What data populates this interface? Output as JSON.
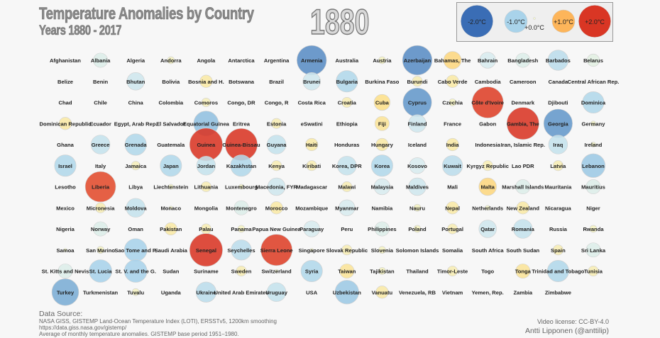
{
  "header": {
    "title": "Temperature Anomalies by Country",
    "subtitle": "Years 1880 - 2017",
    "year": "1880"
  },
  "legend": {
    "items": [
      {
        "label": "-2.0°C",
        "value": -2.0
      },
      {
        "label": "-1.0°C",
        "value": -1.0
      },
      {
        "label": "+0.0°C",
        "value": 0.0
      },
      {
        "label": "+1.0°C",
        "value": 1.0
      },
      {
        "label": "+2.0°C",
        "value": 2.0
      }
    ]
  },
  "footer": {
    "source_heading": "Data Source:",
    "source_line1": "NASA GISS, GISTEMP Land-Ocean Temperature Index (LOTI), ERSSTv5, 1200km smoothing",
    "source_line2": "https://data.giss.nasa.gov/gistemp/",
    "source_line3": "Average of monthly temperature anomalies. GISTEMP base period 1951–1980.",
    "license": "Video license: CC-BY-4.0",
    "author": "Antti Lipponen (@anttilip)"
  },
  "colors": {
    "stops": [
      [
        -2,
        "#3a6db5"
      ],
      [
        -1.5,
        "#6fa3d0"
      ],
      [
        -1,
        "#a9d3ea"
      ],
      [
        -0.5,
        "#d8ecef"
      ],
      [
        0,
        "#f3f6d0"
      ],
      [
        0.5,
        "#fde08a"
      ],
      [
        1,
        "#fdb55a"
      ],
      [
        1.5,
        "#f06a38"
      ],
      [
        2,
        "#d93624"
      ]
    ]
  },
  "chart_data": {
    "type": "scatter",
    "encoding": "bubble grid; size and color = temperature anomaly (°C); no bubble = no data",
    "year": 1880,
    "countries": [
      [
        "Afghanistan",
        null
      ],
      [
        "Albania",
        -0.4
      ],
      [
        "Algeria",
        null
      ],
      [
        "Andorra",
        0.1
      ],
      [
        "Angola",
        null
      ],
      [
        "Antarctica",
        null
      ],
      [
        "Argentina",
        null
      ],
      [
        "Armenia",
        -1.7
      ],
      [
        "Australia",
        null
      ],
      [
        "Austria",
        0.1
      ],
      [
        "Azerbaijan",
        -1.7
      ],
      [
        "Bahamas, The",
        0.6
      ],
      [
        "Bahrain",
        -0.5
      ],
      [
        "Bangladesh",
        -0.4
      ],
      [
        "Barbados",
        -0.8
      ],
      [
        "Belarus",
        -0.3
      ],
      [
        "Belize",
        null
      ],
      [
        "Benin",
        null
      ],
      [
        "Bhutan",
        -0.6
      ],
      [
        "Bolivia",
        null
      ],
      [
        "Bosnia and H.",
        0.3
      ],
      [
        "Botswana",
        null
      ],
      [
        "Brazil",
        null
      ],
      [
        "Brunei",
        -0.6
      ],
      [
        "Bulgaria",
        -0.9
      ],
      [
        "Burkina Faso",
        null
      ],
      [
        "Burundi",
        0.2
      ],
      [
        "Cabo Verde",
        0.3
      ],
      [
        "Cambodia",
        null
      ],
      [
        "Cameroon",
        null
      ],
      [
        "Canada",
        null
      ],
      [
        "Central African Rep.",
        null
      ],
      [
        "Chad",
        null
      ],
      [
        "Chile",
        null
      ],
      [
        "China",
        null
      ],
      [
        "Colombia",
        null
      ],
      [
        "Comoros",
        0.15
      ],
      [
        "Congo, DR",
        null
      ],
      [
        "Congo, R",
        null
      ],
      [
        "Costa Rica",
        null
      ],
      [
        "Croatia",
        0.2
      ],
      [
        "Cuba",
        0.5
      ],
      [
        "Cyprus",
        -1.6
      ],
      [
        "Czechia",
        0.1
      ],
      [
        "Côte d'Ivoire",
        1.9
      ],
      [
        "Denmark",
        null
      ],
      [
        "Djibouti",
        null
      ],
      [
        "Dominica",
        -0.9
      ],
      [
        "Dominican Republic",
        0.3
      ],
      [
        "Ecuador",
        null
      ],
      [
        "Egypt, Arab Rep.",
        null
      ],
      [
        "El Salvador",
        null
      ],
      [
        "Equatorial Guinea",
        -1.2
      ],
      [
        "Eritrea",
        null
      ],
      [
        "Estonia",
        0.2
      ],
      [
        "eSwatini",
        null
      ],
      [
        "Ethiopia",
        null
      ],
      [
        "Fiji",
        0.4
      ],
      [
        "Finland",
        -0.6
      ],
      [
        "France",
        null
      ],
      [
        "Gabon",
        null
      ],
      [
        "Gambia, The",
        2.0
      ],
      [
        "Georgia",
        -1.6
      ],
      [
        "Germany",
        0.05
      ],
      [
        "Ghana",
        null
      ],
      [
        "Greece",
        -0.7
      ],
      [
        "Grenada",
        -0.9
      ],
      [
        "Guatemala",
        null
      ],
      [
        "Guinea",
        2.1
      ],
      [
        "Guinea-Bissau",
        2.0
      ],
      [
        "Guyana",
        -0.7
      ],
      [
        "Haiti",
        0.3
      ],
      [
        "Honduras",
        null
      ],
      [
        "Hungary",
        0.3
      ],
      [
        "Iceland",
        null
      ],
      [
        "India",
        0.3
      ],
      [
        "Indonesia",
        null
      ],
      [
        "Iran, Islamic Rep.",
        null
      ],
      [
        "Iraq",
        -0.7
      ],
      [
        "Ireland",
        0.05
      ],
      [
        "Israel",
        -0.9
      ],
      [
        "Italy",
        null
      ],
      [
        "Jamaica",
        0.15
      ],
      [
        "Japan",
        -0.9
      ],
      [
        "Jordan",
        -0.7
      ],
      [
        "Kazakhstan",
        -0.9
      ],
      [
        "Kenya",
        0.2
      ],
      [
        "Kiribati",
        0.2
      ],
      [
        "Korea, DPR",
        -0.7
      ],
      [
        "Korea",
        -0.9
      ],
      [
        "Kosovo",
        -0.5
      ],
      [
        "Kuwait",
        -0.8
      ],
      [
        "Kyrgyz Republic",
        0.2
      ],
      [
        "Lao PDR",
        null
      ],
      [
        "Latvia",
        0.2
      ],
      [
        "Lebanon",
        -1.1
      ],
      [
        "Lesotho",
        null
      ],
      [
        "Liberia",
        1.8
      ],
      [
        "Libya",
        null
      ],
      [
        "Liechtenstein",
        0.05
      ],
      [
        "Lithuania",
        0.2
      ],
      [
        "Luxembourg",
        0.05
      ],
      [
        "Macedonia, FYR",
        -0.6
      ],
      [
        "Madagascar",
        null
      ],
      [
        "Malawi",
        0.2
      ],
      [
        "Malaysia",
        -0.5
      ],
      [
        "Maldives",
        -0.6
      ],
      [
        "Mali",
        null
      ],
      [
        "Malta",
        0.6
      ],
      [
        "Marshall Islands",
        -0.4
      ],
      [
        "Mauritania",
        null
      ],
      [
        "Mauritius",
        -0.4
      ],
      [
        "Mexico",
        null
      ],
      [
        "Micronesia",
        0.2
      ],
      [
        "Moldova",
        -0.7
      ],
      [
        "Monaco",
        0.02
      ],
      [
        "Mongolia",
        null
      ],
      [
        "Montenegro",
        -0.4
      ],
      [
        "Morocco",
        0.3
      ],
      [
        "Mozambique",
        null
      ],
      [
        "Myanmar",
        -0.5
      ],
      [
        "Namibia",
        null
      ],
      [
        "Nauru",
        0.1
      ],
      [
        "Nepal",
        0.3
      ],
      [
        "Netherlands",
        0.05
      ],
      [
        "New Zealand",
        0.3
      ],
      [
        "Nicaragua",
        null
      ],
      [
        "Niger",
        null
      ],
      [
        "Nigeria",
        null
      ],
      [
        "Norway",
        -0.4
      ],
      [
        "Oman",
        null
      ],
      [
        "Pakistan",
        0.3
      ],
      [
        "Palau",
        0.2
      ],
      [
        "Panama",
        0.1
      ],
      [
        "Papua New Guinea",
        null
      ],
      [
        "Paraguay",
        -0.5
      ],
      [
        "Peru",
        null
      ],
      [
        "Philippines",
        -0.4
      ],
      [
        "Poland",
        0.1
      ],
      [
        "Portugal",
        0.2
      ],
      [
        "Qatar",
        -0.6
      ],
      [
        "Romania",
        -0.7
      ],
      [
        "Russia",
        null
      ],
      [
        "Rwanda",
        0.1
      ],
      [
        "Samoa",
        0.02
      ],
      [
        "San Marino",
        0.1
      ],
      [
        "Sao Tome and P.",
        -1.0
      ],
      [
        "Saudi Arabia",
        null
      ],
      [
        "Senegal",
        2.1
      ],
      [
        "Seychelles",
        -0.8
      ],
      [
        "Sierra Leone",
        1.9
      ],
      [
        "Singapore",
        0.02
      ],
      [
        "Slovak Republic",
        0.2
      ],
      [
        "Slovenia",
        0.1
      ],
      [
        "Solomon Islands",
        null
      ],
      [
        "Somalia",
        null
      ],
      [
        "South Africa",
        null
      ],
      [
        "South Sudan",
        null
      ],
      [
        "Spain",
        0.2
      ],
      [
        "Sri Lanka",
        -0.4
      ],
      [
        "St. Kitts and Nevis",
        -0.4
      ],
      [
        "St. Lucia",
        -1.0
      ],
      [
        "St. V. and the G.",
        -1.0
      ],
      [
        "Sudan",
        null
      ],
      [
        "Suriname",
        null
      ],
      [
        "Sweden",
        0.2
      ],
      [
        "Switzerland",
        0.02
      ],
      [
        "Syria",
        -0.9
      ],
      [
        "Taiwan",
        0.4
      ],
      [
        "Tajikistan",
        0.1
      ],
      [
        "Thailand",
        null
      ],
      [
        "Timor-Leste",
        0.2
      ],
      [
        "Togo",
        null
      ],
      [
        "Tonga",
        0.4
      ],
      [
        "Trinidad and Tobago",
        -0.9
      ],
      [
        "Tunisia",
        0.2
      ],
      [
        "Turkey",
        -1.4
      ],
      [
        "Turkmenistan",
        null
      ],
      [
        "Tuvalu",
        0.1
      ],
      [
        "Uganda",
        null
      ],
      [
        "Ukraine",
        -0.8
      ],
      [
        "United Arab Emirates",
        null
      ],
      [
        "Uruguay",
        -0.7
      ],
      [
        "USA",
        null
      ],
      [
        "Uzbekistan",
        -1.1
      ],
      [
        "Vanuatu",
        0.3
      ],
      [
        "Venezuela, RB",
        null
      ],
      [
        "Vietnam",
        null
      ],
      [
        "Yemen, Rep.",
        null
      ],
      [
        "Zambia",
        null
      ],
      [
        "Zimbabwe",
        null
      ]
    ]
  }
}
